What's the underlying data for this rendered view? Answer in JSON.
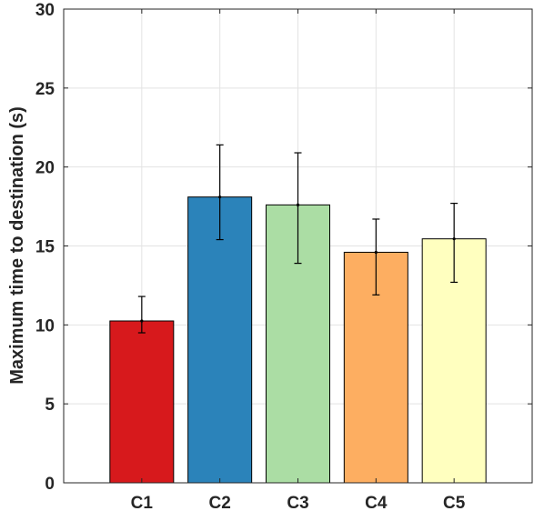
{
  "chart_data": {
    "type": "bar",
    "title": "",
    "xlabel": "",
    "ylabel": "Maximum time to destination (s)",
    "categories": [
      "C1",
      "C2",
      "C3",
      "C4",
      "C5"
    ],
    "values": [
      10.25,
      18.1,
      17.6,
      14.6,
      15.45
    ],
    "error_low": [
      9.5,
      15.4,
      13.9,
      11.9,
      12.7
    ],
    "error_high": [
      11.8,
      21.4,
      20.9,
      16.7,
      17.7
    ],
    "colors": [
      "#d7191c",
      "#2b83ba",
      "#abdda4",
      "#fdae61",
      "#ffffbf"
    ],
    "ylim": [
      0,
      30
    ],
    "yticks": [
      "0",
      "5",
      "10",
      "15",
      "20",
      "25",
      "30"
    ],
    "grid": true,
    "legend": "none"
  }
}
